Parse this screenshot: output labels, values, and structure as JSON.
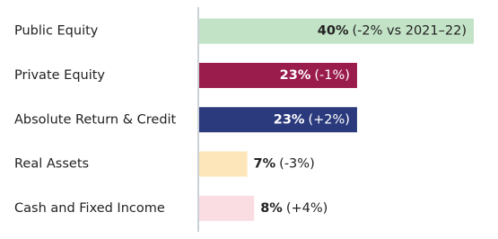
{
  "chart_data": {
    "type": "bar",
    "orientation": "horizontal",
    "categories": [
      "Public Equity",
      "Private Equity",
      "Absolute Return & Credit",
      "Real Assets",
      "Cash and Fixed Income"
    ],
    "values": [
      40,
      23,
      23,
      7,
      8
    ],
    "value_labels": [
      "40%",
      "23%",
      "23%",
      "7%",
      "8%"
    ],
    "change_labels": [
      "(-2% vs 2021–22)",
      "(-1%)",
      "(+2%)",
      "(-3%)",
      "(+4%)"
    ],
    "colors": [
      "#c3e3c7",
      "#9a1c4c",
      "#2b3a7c",
      "#fde6ba",
      "#fadce3"
    ]
  }
}
